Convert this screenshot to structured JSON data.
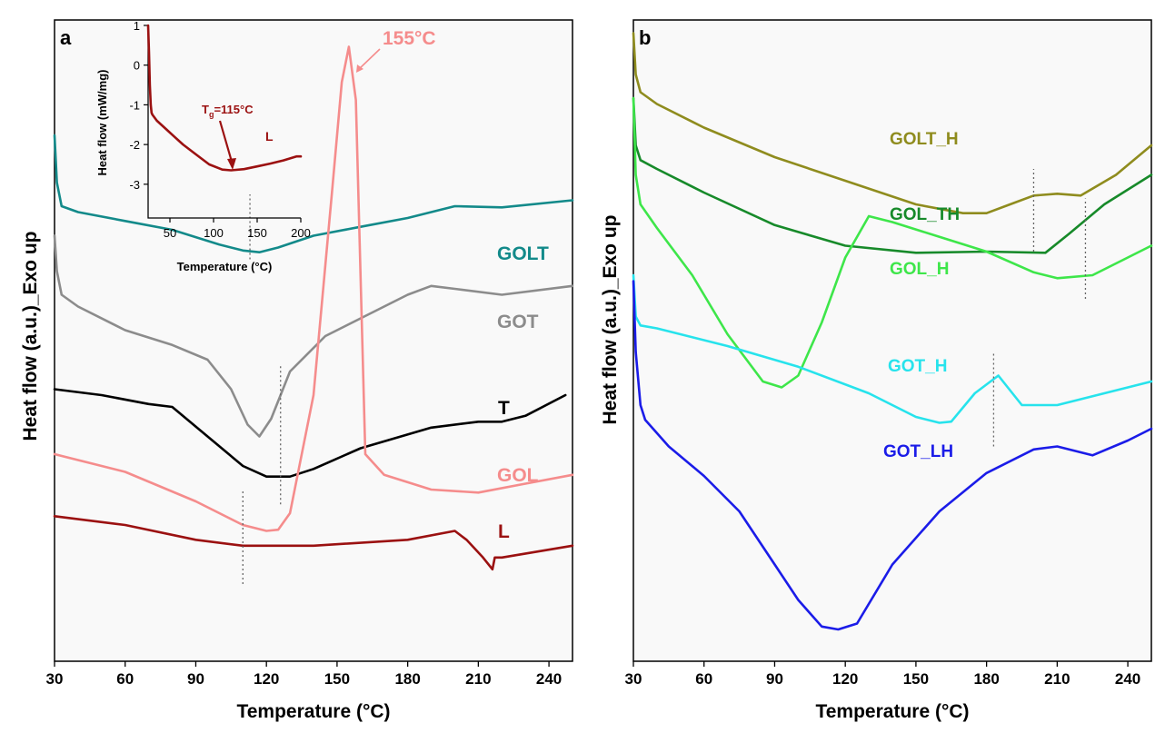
{
  "chart_data": [
    {
      "panel": "a",
      "type": "line",
      "xlabel": "Temperature (°C)",
      "ylabel": "Heat flow (a.u.)_Exo up",
      "xlim": [
        30,
        250
      ],
      "ylim": [
        0,
        100
      ],
      "xticks": [
        30,
        60,
        90,
        120,
        150,
        180,
        210,
        240
      ],
      "peak_annotation": {
        "text": "155°C",
        "x": 155,
        "series": "GOL"
      },
      "series": [
        {
          "name": "GOLT",
          "color": "#138a8a",
          "x": [
            30,
            31,
            33,
            40,
            60,
            80,
            100,
            110,
            117,
            125,
            140,
            160,
            180,
            200,
            220,
            250
          ],
          "y": [
            84,
            76,
            72,
            71,
            69.5,
            68,
            65.5,
            64.5,
            64.2,
            65,
            67,
            68.5,
            70,
            72,
            71.8,
            73
          ]
        },
        {
          "name": "GOT",
          "color": "#8c8c8c",
          "x": [
            30,
            31,
            33,
            40,
            60,
            80,
            95,
            105,
            112,
            117,
            122,
            130,
            145,
            160,
            180,
            190,
            200,
            220,
            250
          ],
          "y": [
            67,
            61,
            57,
            55,
            51,
            48.5,
            46,
            41,
            35,
            33,
            36,
            44,
            50,
            53,
            57,
            58.5,
            58,
            57,
            58.5
          ]
        },
        {
          "name": "T",
          "color": "#000000",
          "x": [
            30,
            50,
            70,
            80,
            95,
            110,
            120,
            130,
            140,
            160,
            190,
            210,
            220,
            230,
            247
          ],
          "y": [
            41,
            40,
            38.5,
            38,
            33,
            28,
            26.2,
            26.2,
            27.5,
            31,
            34.5,
            35.5,
            35.5,
            36.5,
            40
          ]
        },
        {
          "name": "GOL",
          "color": "#f58c8c",
          "x": [
            30,
            60,
            90,
            110,
            120,
            125,
            130,
            140,
            148,
            152,
            155,
            158,
            162,
            170,
            190,
            210,
            230,
            250
          ],
          "y": [
            30,
            27,
            22,
            18,
            17,
            17.2,
            20,
            40,
            75,
            93,
            99,
            90,
            30,
            26.5,
            24,
            23.5,
            25,
            26.5
          ]
        },
        {
          "name": "L",
          "color": "#9b1111",
          "x": [
            30,
            60,
            90,
            110,
            140,
            180,
            200,
            205,
            212,
            216,
            217,
            220,
            235,
            250
          ],
          "y": [
            19.5,
            18,
            15.5,
            14.5,
            14.5,
            15.5,
            17,
            15.5,
            12.5,
            10.5,
            12.5,
            12.5,
            13.5,
            14.5
          ]
        }
      ],
      "markers": [
        {
          "x": 113,
          "y": [
            63,
            74
          ]
        },
        {
          "x": 126,
          "y": [
            21.5,
            45
          ]
        },
        {
          "x": 110,
          "y": [
            8,
            24
          ]
        }
      ],
      "labels": [
        {
          "text": "GOLT",
          "color": "#138a8a"
        },
        {
          "text": "GOT",
          "color": "#8c8c8c"
        },
        {
          "text": "T",
          "color": "#000000"
        },
        {
          "text": "GOL",
          "color": "#f58c8c"
        },
        {
          "text": "L",
          "color": "#9b1111"
        }
      ]
    },
    {
      "panel": "a-inset",
      "type": "line",
      "xlabel": "Temperature (°C)",
      "ylabel": "Heat flow (mW/mg)",
      "xlim": [
        25,
        200
      ],
      "ylim": [
        -3.85,
        1
      ],
      "xticks": [
        50,
        100,
        150,
        200
      ],
      "yticks": [
        1,
        0,
        -1,
        -2,
        -3
      ],
      "series_label": "L",
      "color": "#9b1111",
      "annotation": {
        "prefix": "T",
        "subscript": "g",
        "suffix": "=115°C",
        "x": 115
      },
      "x": [
        25,
        26,
        27,
        28,
        29,
        30,
        35,
        45,
        55,
        65,
        80,
        95,
        110,
        120,
        135,
        150,
        165,
        180,
        195,
        200
      ],
      "y": [
        1,
        0.3,
        -0.5,
        -1.0,
        -1.2,
        -1.25,
        -1.4,
        -1.6,
        -1.8,
        -2.0,
        -2.25,
        -2.5,
        -2.63,
        -2.65,
        -2.62,
        -2.55,
        -2.48,
        -2.4,
        -2.3,
        -2.3
      ]
    },
    {
      "panel": "b",
      "type": "line",
      "xlabel": "Temperature (°C)",
      "ylabel": "Heat flow (a.u.)_Exo up",
      "xlim": [
        30,
        250
      ],
      "ylim": [
        0,
        100
      ],
      "xticks": [
        30,
        60,
        90,
        120,
        150,
        180,
        210,
        240
      ],
      "series": [
        {
          "name": "GOLT_H",
          "color": "#8f8c1e",
          "x": [
            30,
            31,
            33,
            40,
            60,
            90,
            120,
            150,
            170,
            180,
            190,
            200,
            210,
            220,
            235,
            250
          ],
          "y": [
            99,
            92,
            89,
            87,
            83,
            78,
            74,
            70,
            68.5,
            68.5,
            70,
            71.5,
            71.8,
            71.5,
            75,
            80
          ]
        },
        {
          "name": "GOL_TH",
          "color": "#178a2a",
          "x": [
            30,
            31,
            33,
            40,
            60,
            90,
            120,
            150,
            180,
            205,
            215,
            230,
            250
          ],
          "y": [
            88,
            80,
            77.5,
            76,
            72,
            66.5,
            63,
            61.8,
            62,
            61.8,
            65,
            70,
            75
          ]
        },
        {
          "name": "GOL_H",
          "color": "#3ee64a",
          "x": [
            30,
            31,
            33,
            40,
            55,
            70,
            85,
            93,
            100,
            110,
            120,
            130,
            140,
            160,
            180,
            200,
            210,
            225,
            240,
            250
          ],
          "y": [
            88,
            75,
            70,
            66,
            58,
            48,
            40,
            39,
            41,
            50,
            61,
            68,
            67,
            64.5,
            62,
            58.5,
            57.5,
            58,
            61,
            63
          ]
        },
        {
          "name": "GOT_H",
          "color": "#27e3ec",
          "x": [
            30,
            31,
            33,
            40,
            70,
            100,
            130,
            150,
            160,
            165,
            175,
            185,
            195,
            210,
            230,
            250
          ],
          "y": [
            58,
            51,
            49.5,
            49,
            46,
            42.5,
            38,
            34,
            33,
            33.2,
            38,
            41,
            36,
            36,
            38,
            40
          ]
        },
        {
          "name": "GOT_LH",
          "color": "#1b1ce8",
          "x": [
            30,
            31,
            33,
            35,
            45,
            60,
            75,
            90,
            100,
            110,
            117,
            125,
            140,
            160,
            180,
            200,
            210,
            225,
            240,
            250
          ],
          "y": [
            57,
            45,
            36,
            33.5,
            29,
            24,
            18,
            9,
            3,
            -1.5,
            -2,
            -1,
            9,
            18,
            24.5,
            28.5,
            29,
            27.5,
            30,
            32
          ]
        }
      ],
      "markers": [
        {
          "x": 200,
          "y": [
            62,
            76
          ]
        },
        {
          "x": 222,
          "y": [
            54,
            71
          ]
        },
        {
          "x": 183,
          "y": [
            29,
            45
          ]
        }
      ],
      "labels": [
        {
          "text": "GOLT_H",
          "color": "#8f8c1e"
        },
        {
          "text": "GOL_TH",
          "color": "#178a2a"
        },
        {
          "text": "GOL_H",
          "color": "#3ee64a"
        },
        {
          "text": "GOT_H",
          "color": "#27e3ec"
        },
        {
          "text": "GOT_LH",
          "color": "#1b1ce8"
        }
      ]
    }
  ],
  "panels": {
    "a": {
      "letter": "a"
    },
    "b": {
      "letter": "b"
    }
  }
}
